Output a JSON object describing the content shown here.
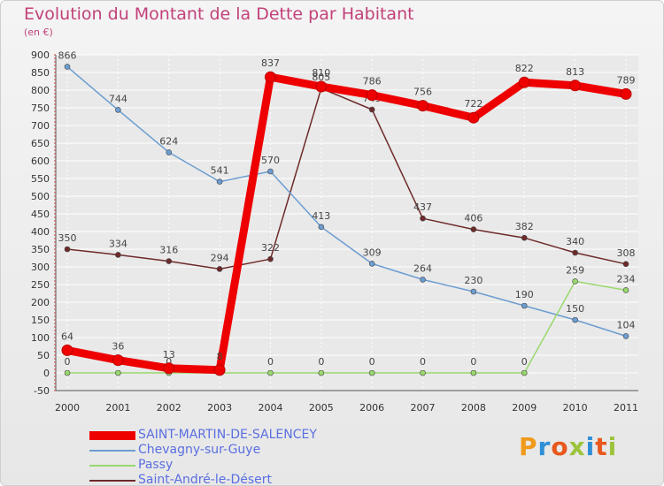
{
  "header": {
    "title": "Evolution du Montant de la Dette par Habitant",
    "unit": "(en €)"
  },
  "brand": {
    "letters": [
      "P",
      "r",
      "o",
      "x",
      "i",
      "t",
      "i"
    ],
    "colors": [
      "#f09a1c",
      "#2f8fd6",
      "#e8581c",
      "#9bc43c",
      "#2f8fd6",
      "#e8581c",
      "#9bc43c"
    ]
  },
  "chart_data": {
    "type": "line",
    "title": "Evolution du Montant de la Dette par Habitant",
    "ylabel": "(en €)",
    "xlabel": "",
    "ylim": [
      -50,
      900
    ],
    "yticks": [
      -50,
      0,
      50,
      100,
      150,
      200,
      250,
      300,
      350,
      400,
      450,
      500,
      550,
      600,
      650,
      700,
      750,
      800,
      850,
      900
    ],
    "categories": [
      "2000",
      "2001",
      "2002",
      "2003",
      "2004",
      "2005",
      "2006",
      "2007",
      "2008",
      "2009",
      "2010",
      "2011"
    ],
    "grid": true,
    "series": [
      {
        "name": "SAINT-MARTIN-DE-SALENCEY",
        "color": "#ee0000",
        "values": [
          64,
          36,
          13,
          8,
          837,
          810,
          786,
          756,
          722,
          822,
          813,
          789
        ],
        "labels": [
          "64",
          "36",
          "13",
          "8",
          "837",
          "810",
          "786",
          "756",
          "722",
          "822",
          "813",
          "789"
        ]
      },
      {
        "name": "Chevagny-sur-Guye",
        "color": "#6c9dd1",
        "values": [
          866,
          744,
          624,
          541,
          570,
          413,
          309,
          264,
          230,
          190,
          150,
          104
        ],
        "labels": [
          "866",
          "744",
          "624",
          "541",
          "570",
          "413",
          "309",
          "264",
          "230",
          "190",
          "150",
          "104"
        ]
      },
      {
        "name": "Passy",
        "color": "#99d86e",
        "values": [
          0,
          0,
          0,
          0,
          0,
          0,
          0,
          0,
          0,
          0,
          259,
          234
        ],
        "labels": [
          "0",
          "0",
          "0",
          "0",
          "0",
          "0",
          "0",
          "0",
          "0",
          "0",
          "259",
          "234"
        ]
      },
      {
        "name": "Saint-André-le-Désert",
        "color": "#6e2a2a",
        "values": [
          350,
          334,
          316,
          294,
          322,
          805,
          745,
          437,
          406,
          382,
          340,
          308
        ],
        "labels": [
          "350",
          "334",
          "316",
          "294",
          "322",
          "805",
          "745",
          "437",
          "406",
          "382",
          "340",
          "308"
        ]
      }
    ]
  }
}
